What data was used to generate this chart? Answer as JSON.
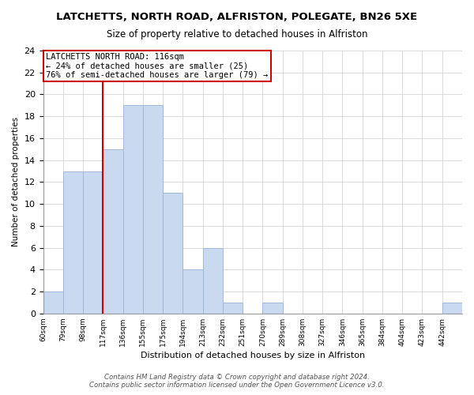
{
  "title": "LATCHETTS, NORTH ROAD, ALFRISTON, POLEGATE, BN26 5XE",
  "subtitle": "Size of property relative to detached houses in Alfriston",
  "xlabel": "Distribution of detached houses by size in Alfriston",
  "ylabel": "Number of detached properties",
  "bin_labels": [
    "60sqm",
    "79sqm",
    "98sqm",
    "117sqm",
    "136sqm",
    "155sqm",
    "175sqm",
    "194sqm",
    "213sqm",
    "232sqm",
    "251sqm",
    "270sqm",
    "289sqm",
    "308sqm",
    "327sqm",
    "346sqm",
    "365sqm",
    "384sqm",
    "404sqm",
    "423sqm",
    "442sqm"
  ],
  "bar_heights": [
    2,
    13,
    13,
    15,
    19,
    19,
    11,
    4,
    6,
    1,
    0,
    1,
    0,
    0,
    0,
    0,
    0,
    0,
    0,
    0,
    1
  ],
  "bar_color": "#c9d9f0",
  "bar_edge_color": "#a0b8d8",
  "vline_x_index": 3,
  "vline_color": "#cc0000",
  "annotation_line1": "LATCHETTS NORTH ROAD: 116sqm",
  "annotation_line2": "← 24% of detached houses are smaller (25)",
  "annotation_line3": "76% of semi-detached houses are larger (79) →",
  "annotation_box_color": "#ffffff",
  "annotation_box_edge_color": "#cc0000",
  "ylim": [
    0,
    24
  ],
  "yticks": [
    0,
    2,
    4,
    6,
    8,
    10,
    12,
    14,
    16,
    18,
    20,
    22,
    24
  ],
  "footer_line1": "Contains HM Land Registry data © Crown copyright and database right 2024.",
  "footer_line2": "Contains public sector information licensed under the Open Government Licence v3.0.",
  "bg_color": "#ffffff",
  "grid_color": "#cccccc"
}
